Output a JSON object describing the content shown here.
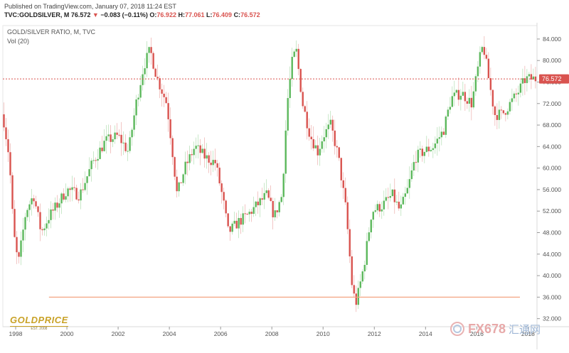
{
  "header": {
    "published": "Published on TradingView.com, January 07, 2018 11:24 EST"
  },
  "ohlc": {
    "symbol": "TVC:GOLDSILVER, M",
    "last": "76.572",
    "change": "−0.083 (−0.11%)",
    "open_label": "O:",
    "open": "76.922",
    "high_label": "H:",
    "high": "77.061",
    "low_label": "L:",
    "low": "76.409",
    "close_label": "C:",
    "close": "76.572"
  },
  "logos": {
    "left_brand": "GOLDPRICE",
    "left_est": "EST. 2008",
    "right_brand": "FX678",
    "right_cn": "汇通网"
  },
  "chart_data": {
    "type": "candlestick",
    "title": "GOLD/SILVER RATIO, M, TVC",
    "indicator_label": "Vol (20)",
    "x_ticks": [
      "1998",
      "2000",
      "2002",
      "2004",
      "2006",
      "2008",
      "2010",
      "2012",
      "2014",
      "2016",
      "2018"
    ],
    "y_ticks": [
      "32.000",
      "36.000",
      "40.000",
      "44.000",
      "48.000",
      "52.000",
      "56.000",
      "60.000",
      "64.000",
      "68.000",
      "72.000",
      "76.000",
      "80.000",
      "84.000"
    ],
    "ylim": [
      30.5,
      86.5
    ],
    "xlim": [
      1997.5,
      2018.35
    ],
    "last_price": 76.572,
    "last_price_label": "76.572",
    "volume_level": 36.0,
    "colors": {
      "up": "#5cb85c",
      "down": "#d9534f",
      "price_line": "#d9534f",
      "volume_line": "#f4a582",
      "axis_text": "#555555"
    },
    "anchors": [
      [
        1997.5,
        70
      ],
      [
        1997.75,
        62
      ],
      [
        1997.92,
        48
      ],
      [
        1998.1,
        42
      ],
      [
        1998.4,
        52
      ],
      [
        1998.7,
        55
      ],
      [
        1999.0,
        48
      ],
      [
        1999.3,
        51
      ],
      [
        1999.6,
        53
      ],
      [
        2000.0,
        56
      ],
      [
        2000.5,
        55
      ],
      [
        2001.0,
        61
      ],
      [
        2001.5,
        65
      ],
      [
        2002.0,
        66
      ],
      [
        2002.4,
        63
      ],
      [
        2002.7,
        72
      ],
      [
        2003.0,
        79
      ],
      [
        2003.25,
        82
      ],
      [
        2003.5,
        77
      ],
      [
        2003.9,
        72
      ],
      [
        2004.1,
        64
      ],
      [
        2004.3,
        55
      ],
      [
        2004.6,
        60
      ],
      [
        2005.0,
        64
      ],
      [
        2005.4,
        62
      ],
      [
        2005.8,
        61
      ],
      [
        2006.1,
        54
      ],
      [
        2006.3,
        48
      ],
      [
        2006.7,
        50
      ],
      [
        2007.0,
        51
      ],
      [
        2007.4,
        53
      ],
      [
        2007.8,
        55
      ],
      [
        2008.1,
        51
      ],
      [
        2008.4,
        55
      ],
      [
        2008.6,
        72
      ],
      [
        2008.8,
        80
      ],
      [
        2008.95,
        82
      ],
      [
        2009.2,
        72
      ],
      [
        2009.5,
        66
      ],
      [
        2009.8,
        63
      ],
      [
        2010.0,
        66
      ],
      [
        2010.3,
        68
      ],
      [
        2010.6,
        62
      ],
      [
        2010.9,
        52
      ],
      [
        2011.15,
        37
      ],
      [
        2011.3,
        35
      ],
      [
        2011.6,
        42
      ],
      [
        2011.9,
        52
      ],
      [
        2012.3,
        53
      ],
      [
        2012.7,
        55
      ],
      [
        2013.0,
        52
      ],
      [
        2013.3,
        56
      ],
      [
        2013.6,
        62
      ],
      [
        2013.9,
        63
      ],
      [
        2014.3,
        64
      ],
      [
        2014.7,
        67
      ],
      [
        2015.0,
        73
      ],
      [
        2015.4,
        74
      ],
      [
        2015.8,
        72
      ],
      [
        2016.1,
        80
      ],
      [
        2016.25,
        83
      ],
      [
        2016.45,
        77
      ],
      [
        2016.7,
        70
      ],
      [
        2017.0,
        70
      ],
      [
        2017.3,
        72
      ],
      [
        2017.6,
        74
      ],
      [
        2017.9,
        76.6
      ]
    ]
  }
}
